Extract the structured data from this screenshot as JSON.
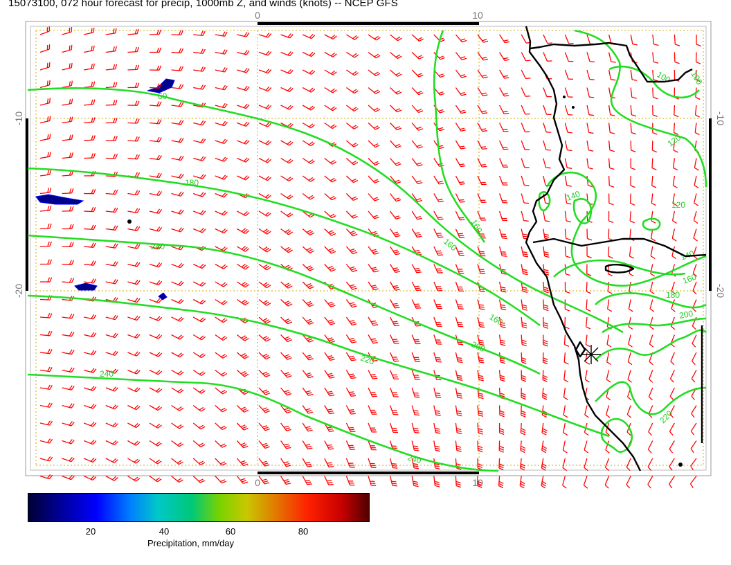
{
  "title": "15073100, 072 hour forecast for precip, 1000mb Z, and winds (knots) -- NCEP GFS",
  "axes": {
    "top_ticks": [
      "0",
      "10"
    ],
    "bottom_ticks": [
      "0",
      "10"
    ],
    "left_ticks": [
      "-10",
      "-20"
    ],
    "right_ticks": [
      "-10",
      "-20"
    ]
  },
  "contour_labels": [
    "60",
    "180",
    "240",
    "240",
    "120",
    "160",
    "160",
    "140",
    "160",
    "180",
    "200",
    "220",
    "200",
    "220",
    "240",
    "160",
    "140",
    "120",
    "100",
    "100",
    "120",
    "160",
    "160",
    "180",
    "200",
    "220",
    "240"
  ],
  "colorbar": {
    "ticks": [
      "20",
      "40",
      "60",
      "80"
    ],
    "title": "Precipitation, mm/day"
  },
  "colors": {
    "wind_barbs": "#ff0000",
    "contours": "#22dd22",
    "coastline": "#000000",
    "grid": "#ccaa00",
    "precip_low": "#000088"
  },
  "map_layers": [
    "precipitation",
    "1000mb geopotential height contours",
    "wind barbs (knots)",
    "coastline",
    "lat/lon grid"
  ]
}
